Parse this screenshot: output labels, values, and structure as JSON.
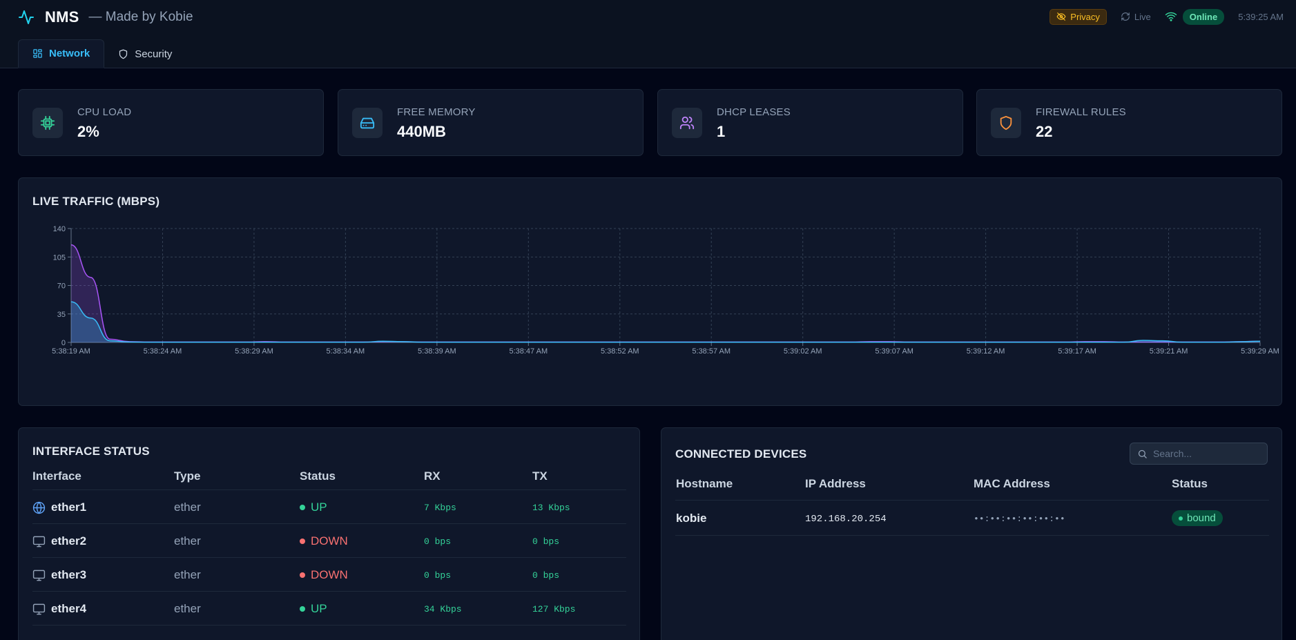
{
  "header": {
    "title": "NMS",
    "subtitle": "— Made by Kobie",
    "privacy_label": "Privacy",
    "live_label": "Live",
    "status_label": "Online",
    "clock": "5:39:25 AM"
  },
  "tabs": [
    {
      "label": "Network",
      "icon": "dashboard-icon",
      "active": true
    },
    {
      "label": "Security",
      "icon": "shield-icon",
      "active": false
    }
  ],
  "stats": [
    {
      "label": "CPU LOAD",
      "value": "2%",
      "icon": "cpu-icon",
      "color": "#34d399"
    },
    {
      "label": "FREE MEMORY",
      "value": "440MB",
      "icon": "hard-drive-icon",
      "color": "#38bdf8"
    },
    {
      "label": "DHCP LEASES",
      "value": "1",
      "icon": "users-icon",
      "color": "#c084fc"
    },
    {
      "label": "FIREWALL RULES",
      "value": "22",
      "icon": "shield-icon",
      "color": "#fb923c"
    }
  ],
  "chart_data": {
    "type": "area",
    "title": "LIVE TRAFFIC (MBPS)",
    "ylim": [
      0,
      140
    ],
    "yticks": [
      0,
      35,
      70,
      105,
      140
    ],
    "xtick_labels": [
      "5:38:19 AM",
      "5:38:24 AM",
      "5:38:29 AM",
      "5:38:34 AM",
      "5:38:39 AM",
      "5:38:47 AM",
      "5:38:52 AM",
      "5:38:57 AM",
      "5:39:02 AM",
      "5:39:07 AM",
      "5:39:12 AM",
      "5:39:17 AM",
      "5:39:21 AM",
      "5:39:29 AM"
    ],
    "grid": true,
    "series": [
      {
        "color": "#a855f7",
        "values": [
          120,
          80,
          4,
          1,
          0.5,
          0.5,
          0.5,
          0.5,
          0.5,
          0.5,
          1,
          0.5,
          0.5,
          0.5,
          0.5,
          0.5,
          1,
          1,
          0.5,
          0.5,
          0.5,
          0.5,
          0.5,
          0.5,
          0.5,
          0.5,
          0.5,
          0.5,
          0.5,
          0.5,
          0.5,
          0.5,
          0.5,
          0.5,
          0.5,
          0.5,
          0.5,
          0.5,
          0.5,
          0.5,
          0.5,
          1,
          1,
          0.5,
          0.5,
          0.5,
          0.5,
          0.5,
          0.5,
          0.5,
          0.5,
          0.5,
          1,
          1,
          0.5,
          0.5,
          0.5,
          0.5,
          0.5,
          0.5,
          1,
          1.5
        ]
      },
      {
        "color": "#38bdf8",
        "values": [
          50,
          30,
          2,
          0.5,
          0.3,
          0.3,
          0.3,
          0.3,
          0.3,
          0.3,
          0.3,
          0.3,
          0.3,
          0.3,
          0.3,
          0.3,
          1.5,
          1,
          0.3,
          0.3,
          0.3,
          0.3,
          0.3,
          0.3,
          0.3,
          0.3,
          0.3,
          0.3,
          0.3,
          0.3,
          0.3,
          0.3,
          0.3,
          0.3,
          0.3,
          0.3,
          0.3,
          0.3,
          0.3,
          0.3,
          0.3,
          0.3,
          0.3,
          0.3,
          0.3,
          0.3,
          0.3,
          0.3,
          0.3,
          0.3,
          0.3,
          0.3,
          0.3,
          0.3,
          0.3,
          2.5,
          2,
          0.3,
          0.3,
          0.3,
          0.8,
          1.5
        ]
      }
    ]
  },
  "interfaces": {
    "title": "INTERFACE STATUS",
    "columns": [
      "Interface",
      "Type",
      "Status",
      "RX",
      "TX"
    ],
    "rows": [
      {
        "name": "ether1",
        "icon": "globe-icon",
        "type": "ether",
        "status": "UP",
        "status_color": "#34d399",
        "rx": "7 Kbps",
        "tx": "13 Kbps"
      },
      {
        "name": "ether2",
        "icon": "monitor-icon",
        "type": "ether",
        "status": "DOWN",
        "status_color": "#f87171",
        "rx": "0 bps",
        "tx": "0 bps"
      },
      {
        "name": "ether3",
        "icon": "monitor-icon",
        "type": "ether",
        "status": "DOWN",
        "status_color": "#f87171",
        "rx": "0 bps",
        "tx": "0 bps"
      },
      {
        "name": "ether4",
        "icon": "monitor-icon",
        "type": "ether",
        "status": "UP",
        "status_color": "#34d399",
        "rx": "34 Kbps",
        "tx": "127 Kbps"
      }
    ]
  },
  "devices": {
    "title": "CONNECTED DEVICES",
    "search_placeholder": "Search...",
    "columns": [
      "Hostname",
      "IP Address",
      "MAC Address",
      "Status"
    ],
    "rows": [
      {
        "hostname": "kobie",
        "ip": "192.168.20.254",
        "mac": "••:••:••:••:••:••",
        "status": "bound"
      }
    ]
  }
}
